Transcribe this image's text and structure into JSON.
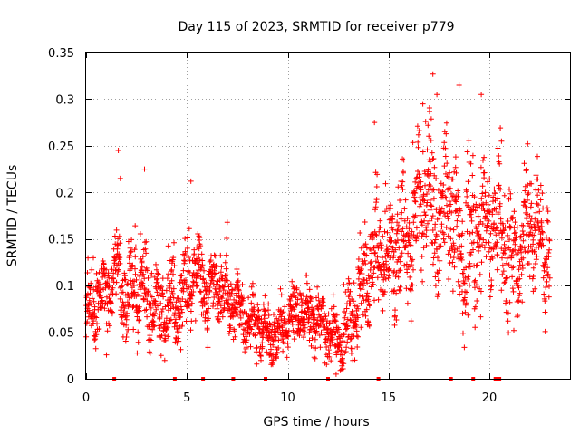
{
  "chart_data": {
    "type": "scatter",
    "title": "Day 115 of 2023, SRMTID for receiver p779",
    "xlabel": "GPS time / hours",
    "ylabel": "SRMTID / TECUs",
    "xlim": [
      0,
      24
    ],
    "ylim": [
      0,
      0.35
    ],
    "x_ticks": [
      0,
      5,
      10,
      15,
      20
    ],
    "x_tick_labels": [
      "0",
      "5",
      "10",
      "15",
      "20"
    ],
    "y_ticks": [
      0,
      0.05,
      0.1,
      0.15,
      0.2,
      0.25,
      0.3,
      0.35
    ],
    "y_tick_labels": [
      "0",
      "0.05",
      "0.1",
      "0.15",
      "0.2",
      "0.25",
      "0.3",
      "0.35"
    ],
    "grid": true,
    "marker": "+",
    "color": "#ff0000",
    "baseline_markers_x": [
      1.4,
      4.4,
      5.8,
      7.3,
      8.9,
      12.0,
      14.5,
      18.1,
      19.2,
      20.3,
      20.4,
      20.5
    ],
    "profile": [
      {
        "x": 0.0,
        "y": 0.065
      },
      {
        "x": 0.5,
        "y": 0.085
      },
      {
        "x": 1.0,
        "y": 0.09
      },
      {
        "x": 1.5,
        "y": 0.12
      },
      {
        "x": 2.0,
        "y": 0.09
      },
      {
        "x": 2.5,
        "y": 0.1
      },
      {
        "x": 3.0,
        "y": 0.085
      },
      {
        "x": 3.5,
        "y": 0.07
      },
      {
        "x": 4.0,
        "y": 0.08
      },
      {
        "x": 4.5,
        "y": 0.08
      },
      {
        "x": 5.0,
        "y": 0.1
      },
      {
        "x": 5.5,
        "y": 0.115
      },
      {
        "x": 6.0,
        "y": 0.09
      },
      {
        "x": 6.5,
        "y": 0.1
      },
      {
        "x": 7.0,
        "y": 0.085
      },
      {
        "x": 7.5,
        "y": 0.08
      },
      {
        "x": 8.0,
        "y": 0.065
      },
      {
        "x": 8.5,
        "y": 0.055
      },
      {
        "x": 9.0,
        "y": 0.05
      },
      {
        "x": 9.5,
        "y": 0.045
      },
      {
        "x": 10.0,
        "y": 0.06
      },
      {
        "x": 10.5,
        "y": 0.075
      },
      {
        "x": 11.0,
        "y": 0.07
      },
      {
        "x": 11.5,
        "y": 0.06
      },
      {
        "x": 12.0,
        "y": 0.05
      },
      {
        "x": 12.5,
        "y": 0.04
      },
      {
        "x": 13.0,
        "y": 0.05
      },
      {
        "x": 13.5,
        "y": 0.09
      },
      {
        "x": 14.0,
        "y": 0.115
      },
      {
        "x": 14.5,
        "y": 0.13
      },
      {
        "x": 15.0,
        "y": 0.13
      },
      {
        "x": 15.5,
        "y": 0.14
      },
      {
        "x": 16.0,
        "y": 0.14
      },
      {
        "x": 16.5,
        "y": 0.19
      },
      {
        "x": 17.0,
        "y": 0.2
      },
      {
        "x": 17.5,
        "y": 0.17
      },
      {
        "x": 18.0,
        "y": 0.19
      },
      {
        "x": 18.5,
        "y": 0.13
      },
      {
        "x": 19.0,
        "y": 0.15
      },
      {
        "x": 19.5,
        "y": 0.16
      },
      {
        "x": 20.0,
        "y": 0.17
      },
      {
        "x": 20.5,
        "y": 0.17
      },
      {
        "x": 21.0,
        "y": 0.13
      },
      {
        "x": 21.5,
        "y": 0.13
      },
      {
        "x": 22.0,
        "y": 0.18
      },
      {
        "x": 22.5,
        "y": 0.15
      },
      {
        "x": 23.0,
        "y": 0.14
      }
    ],
    "spread": [
      {
        "x": 0.0,
        "y": 0.025
      },
      {
        "x": 4.0,
        "y": 0.03
      },
      {
        "x": 8.0,
        "y": 0.02
      },
      {
        "x": 12.0,
        "y": 0.018
      },
      {
        "x": 14.0,
        "y": 0.035
      },
      {
        "x": 16.0,
        "y": 0.045
      },
      {
        "x": 18.0,
        "y": 0.05
      },
      {
        "x": 20.0,
        "y": 0.045
      },
      {
        "x": 23.0,
        "y": 0.04
      }
    ],
    "peaks": [
      {
        "x": 1.6,
        "y": 0.245
      },
      {
        "x": 1.7,
        "y": 0.215
      },
      {
        "x": 2.9,
        "y": 0.225
      },
      {
        "x": 5.2,
        "y": 0.212
      },
      {
        "x": 7.0,
        "y": 0.168
      },
      {
        "x": 14.3,
        "y": 0.275
      },
      {
        "x": 16.7,
        "y": 0.295
      },
      {
        "x": 17.2,
        "y": 0.327
      },
      {
        "x": 17.4,
        "y": 0.305
      },
      {
        "x": 18.5,
        "y": 0.315
      },
      {
        "x": 19.6,
        "y": 0.305
      },
      {
        "x": 20.6,
        "y": 0.255
      },
      {
        "x": 21.9,
        "y": 0.252
      },
      {
        "x": 12.4,
        "y": 0.005
      }
    ],
    "points_count": 2400,
    "x_range": [
      0.0,
      23.0
    ]
  }
}
